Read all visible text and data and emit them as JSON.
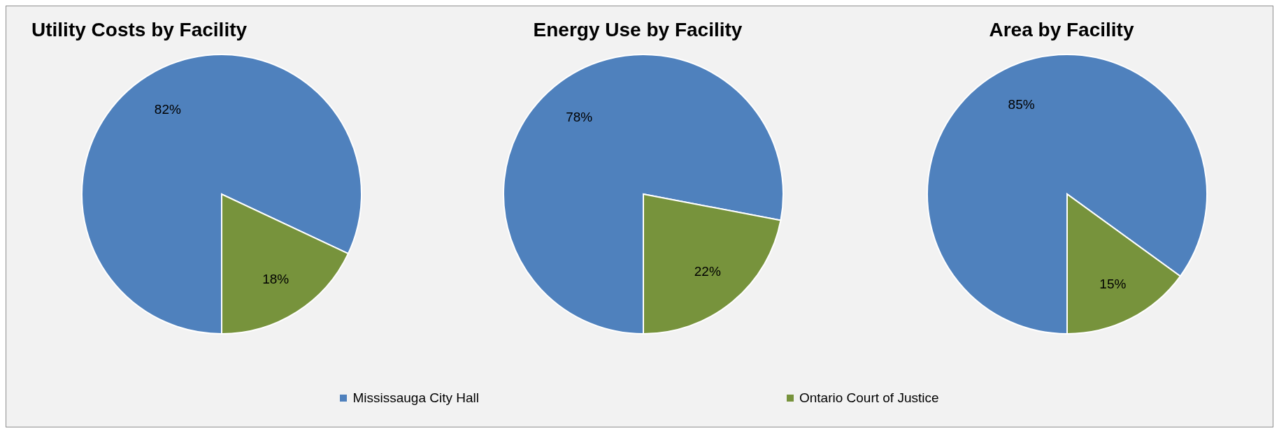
{
  "chart_data": [
    {
      "type": "pie",
      "title": "Utility Costs by Facility",
      "categories": [
        "Mississauga City Hall",
        "Ontario Court of Justice"
      ],
      "values": [
        82,
        18
      ],
      "colors": [
        "#4f81bd",
        "#77933c"
      ],
      "value_labels": [
        "82%",
        "18%"
      ],
      "legend": "bottom"
    },
    {
      "type": "pie",
      "title": "Energy Use by Facility",
      "categories": [
        null,
        null
      ],
      "values": [
        78,
        22
      ],
      "colors": [
        "#4f81bd",
        "#77933c"
      ],
      "value_labels": [
        "78%",
        "22%"
      ]
    },
    {
      "type": "pie",
      "title": "Area by Facility",
      "categories": [
        null,
        null
      ],
      "values": [
        85,
        15
      ],
      "colors": [
        "#4f81bd",
        "#77933c"
      ],
      "value_labels": [
        "85%",
        "15%"
      ]
    }
  ]
}
